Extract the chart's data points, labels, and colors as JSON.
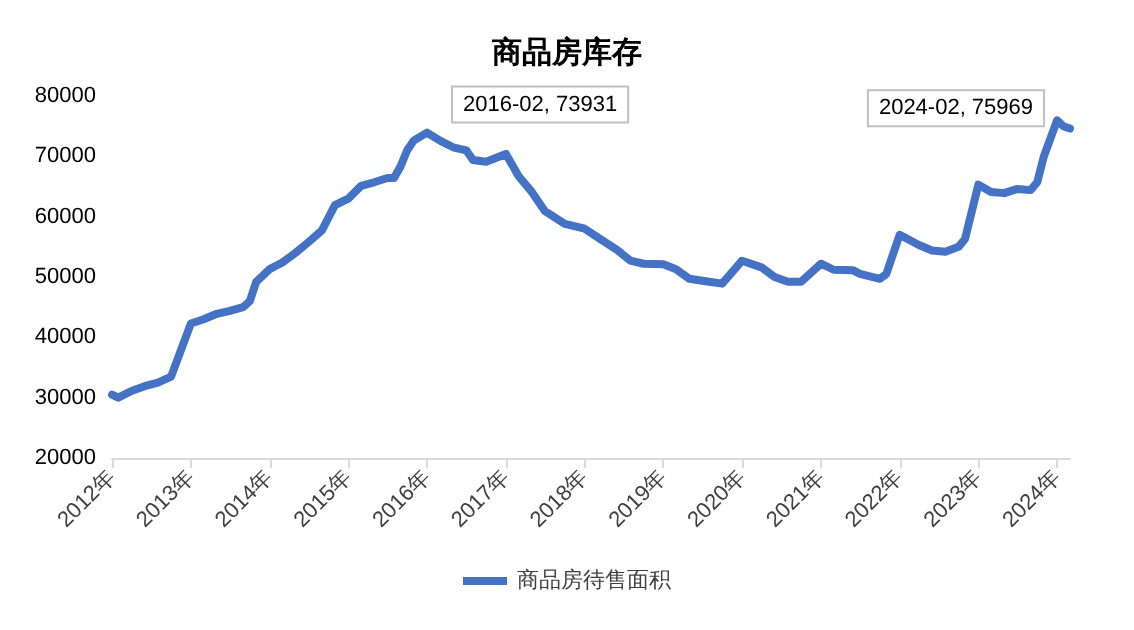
{
  "chart_data": {
    "type": "line",
    "title": "商品房库存",
    "x": [
      "2012-02",
      "2012-03",
      "2012-05",
      "2012-07",
      "2012-09",
      "2012-11",
      "2013-02",
      "2013-04",
      "2013-06",
      "2013-08",
      "2013-10",
      "2013-11",
      "2013-12",
      "2014-02",
      "2014-04",
      "2014-06",
      "2014-08",
      "2014-10",
      "2014-12",
      "2015-02",
      "2015-04",
      "2015-06",
      "2015-08",
      "2015-09",
      "2015-10",
      "2015-11",
      "2015-12",
      "2016-02",
      "2016-04",
      "2016-06",
      "2016-08",
      "2016-09",
      "2016-11",
      "2017-02",
      "2017-04",
      "2017-06",
      "2017-08",
      "2017-11",
      "2018-02",
      "2018-04",
      "2018-07",
      "2018-09",
      "2018-11",
      "2019-02",
      "2019-04",
      "2019-06",
      "2019-09",
      "2019-11",
      "2020-02",
      "2020-05",
      "2020-07",
      "2020-09",
      "2020-11",
      "2021-02",
      "2021-04",
      "2021-07",
      "2021-08",
      "2021-11",
      "2021-12",
      "2022-02",
      "2022-05",
      "2022-07",
      "2022-09",
      "2022-11",
      "2022-12",
      "2023-02",
      "2023-04",
      "2023-06",
      "2023-08",
      "2023-10",
      "2023-11",
      "2023-12",
      "2024-02",
      "2024-03",
      "2024-04"
    ],
    "series": [
      {
        "name": "商品房待售面积",
        "color": "#4472c4",
        "values": [
          30500,
          30000,
          31100,
          31900,
          32500,
          33500,
          42300,
          43000,
          43900,
          44400,
          45000,
          46000,
          49200,
          51300,
          52400,
          54000,
          55800,
          57700,
          61900,
          63000,
          65100,
          65700,
          66400,
          66400,
          68300,
          71000,
          72600,
          73931,
          72600,
          71500,
          71000,
          69400,
          69100,
          70400,
          66700,
          64100,
          60900,
          58800,
          58000,
          56600,
          54500,
          52700,
          52200,
          52100,
          51300,
          49700,
          49200,
          48900,
          52700,
          51600,
          50000,
          49200,
          49200,
          52200,
          51200,
          51100,
          50500,
          49700,
          50500,
          57000,
          55300,
          54400,
          54200,
          55000,
          56300,
          65300,
          64100,
          63900,
          64600,
          64400,
          65700,
          69900,
          75969,
          75000,
          74600
        ]
      }
    ],
    "xlim": [
      "2012-02",
      "2024-04"
    ],
    "xticks": [
      {
        "value": "2012-02",
        "label": "2012年"
      },
      {
        "value": "2013-02",
        "label": "2013年"
      },
      {
        "value": "2014-02",
        "label": "2014年"
      },
      {
        "value": "2015-02",
        "label": "2015年"
      },
      {
        "value": "2016-02",
        "label": "2016年"
      },
      {
        "value": "2017-02",
        "label": "2017年"
      },
      {
        "value": "2018-02",
        "label": "2018年"
      },
      {
        "value": "2019-02",
        "label": "2019年"
      },
      {
        "value": "2020-02",
        "label": "2020年"
      },
      {
        "value": "2021-02",
        "label": "2021年"
      },
      {
        "value": "2022-02",
        "label": "2022年"
      },
      {
        "value": "2023-02",
        "label": "2023年"
      },
      {
        "value": "2024-02",
        "label": "2024年"
      }
    ],
    "ylim": [
      20000,
      80000
    ],
    "yticks": [
      20000,
      30000,
      40000,
      50000,
      60000,
      70000,
      80000
    ],
    "annotations": [
      {
        "text": "2016-02, 73931",
        "x": "2016-02",
        "y": 73931
      },
      {
        "text": "2024-02, 75969",
        "x": "2024-02",
        "y": 75969
      }
    ],
    "grid": false,
    "legend": "bottom",
    "marker": "none",
    "line_style": "solid"
  }
}
